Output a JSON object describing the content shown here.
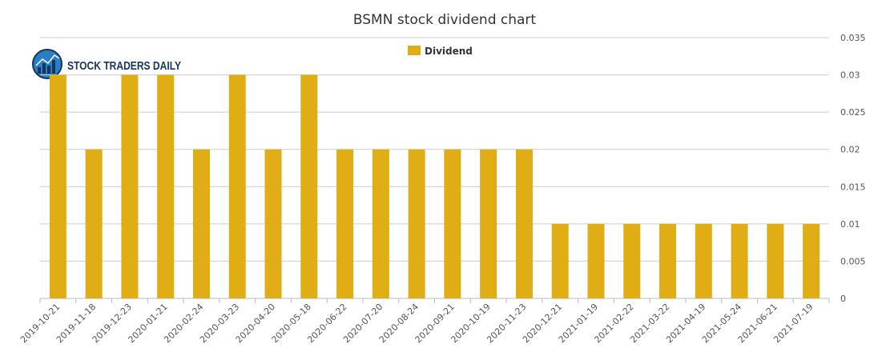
{
  "chart_data": {
    "type": "bar",
    "title": "BSMN stock dividend chart",
    "categories": [
      "2019-10-21",
      "2019-11-18",
      "2019-12-23",
      "2020-01-21",
      "2020-02-24",
      "2020-03-23",
      "2020-04-20",
      "2020-05-18",
      "2020-06-22",
      "2020-07-20",
      "2020-08-24",
      "2020-09-21",
      "2020-10-19",
      "2020-11-23",
      "2020-12-21",
      "2021-01-19",
      "2021-02-22",
      "2021-03-22",
      "2021-04-19",
      "2021-05-24",
      "2021-06-21",
      "2021-07-19"
    ],
    "series": [
      {
        "name": "Dividend",
        "values": [
          0.03,
          0.02,
          0.03,
          0.03,
          0.02,
          0.03,
          0.02,
          0.03,
          0.02,
          0.02,
          0.02,
          0.02,
          0.02,
          0.02,
          0.01,
          0.01,
          0.01,
          0.01,
          0.01,
          0.01,
          0.01,
          0.01
        ]
      }
    ],
    "xlabel": "",
    "ylabel": "",
    "ylim": [
      0,
      0.035
    ],
    "yticks": [
      "0",
      "0.005",
      "0.01",
      "0.015",
      "0.02",
      "0.025",
      "0.03",
      "0.035"
    ],
    "grid": true,
    "legend_position": "top-center"
  },
  "logo": {
    "text": "STOCK TRADERS DAILY"
  },
  "colors": {
    "bar": "#e0ad14",
    "grid": "#cccccc",
    "axis": "#bbbbbb"
  }
}
